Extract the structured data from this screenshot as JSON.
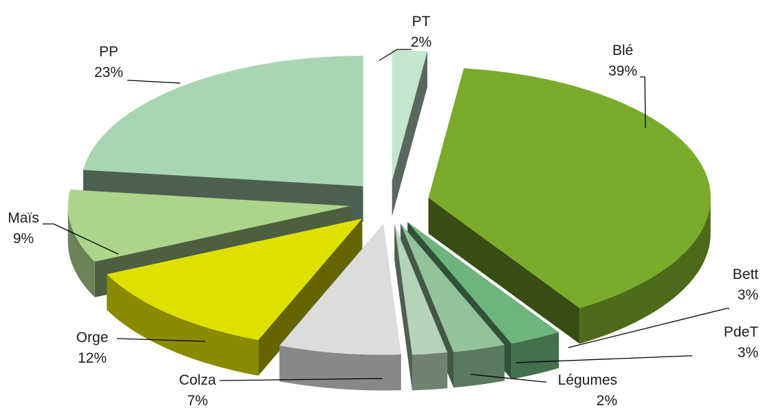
{
  "chart_data": {
    "type": "pie",
    "style": "3d-exploded",
    "title": "",
    "slices": [
      {
        "name": "PT",
        "value": 2,
        "label": "2%",
        "color": "#c3e6cd"
      },
      {
        "name": "Blé",
        "value": 39,
        "label": "39%",
        "color": "#7aab2a"
      },
      {
        "name": "Bett",
        "value": 3,
        "label": "3%",
        "color": "#6db47d"
      },
      {
        "name": "PdeT",
        "value": 3,
        "label": "3%",
        "color": "#93c39a"
      },
      {
        "name": "Légumes",
        "value": 2,
        "label": "2%",
        "color": "#b5d3b8"
      },
      {
        "name": "Colza",
        "value": 7,
        "label": "7%",
        "color": "#dcdcdc"
      },
      {
        "name": "Orge",
        "value": 12,
        "label": "12%",
        "color": "#dfe000"
      },
      {
        "name": "Maïs",
        "value": 9,
        "label": "9%",
        "color": "#acd48b"
      },
      {
        "name": "PP",
        "value": 23,
        "label": "23%",
        "color": "#a9d6b2"
      }
    ],
    "legend": "none"
  }
}
